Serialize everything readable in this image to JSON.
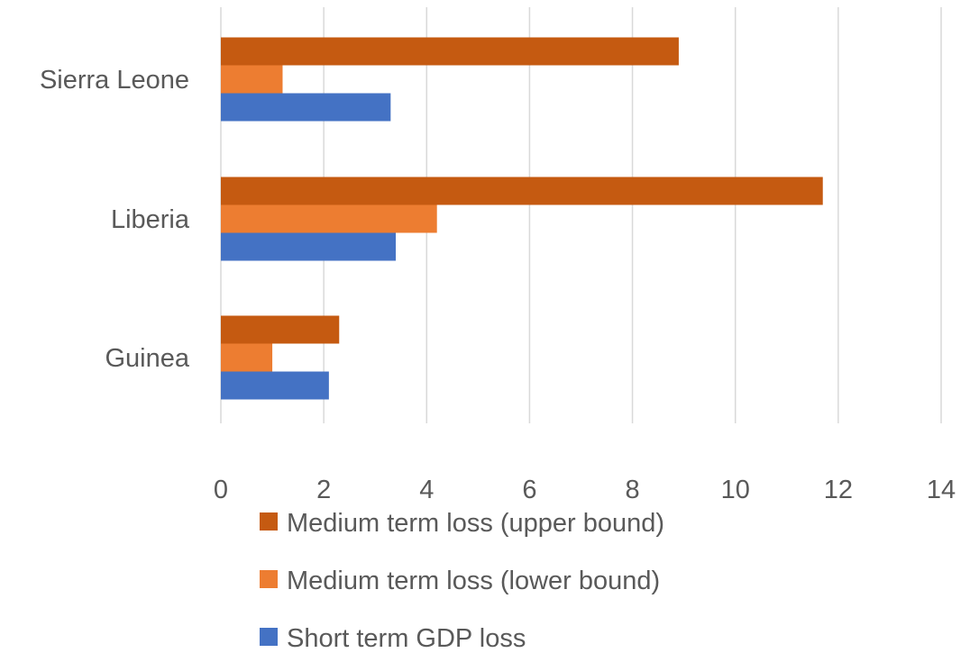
{
  "chart_data": {
    "type": "bar",
    "orientation": "horizontal",
    "title": "",
    "xlabel": "",
    "ylabel": "",
    "categories": [
      "Guinea",
      "Liberia",
      "Sierra Leone"
    ],
    "xlim": [
      0,
      14
    ],
    "xticks": [
      "0",
      "2",
      "4",
      "6",
      "8",
      "10",
      "12",
      "14"
    ],
    "grid": true,
    "legend_position": "bottom",
    "series": [
      {
        "name": "Short term GDP loss",
        "color": "#4472C4",
        "values": [
          2.1,
          3.4,
          3.3
        ]
      },
      {
        "name": "Medium term loss (lower bound)",
        "color": "#ED7D31",
        "values": [
          1.0,
          4.2,
          1.2
        ]
      },
      {
        "name": "Medium term loss (upper bound)",
        "color": "#C55A11",
        "values": [
          2.3,
          11.7,
          8.9
        ]
      }
    ]
  }
}
